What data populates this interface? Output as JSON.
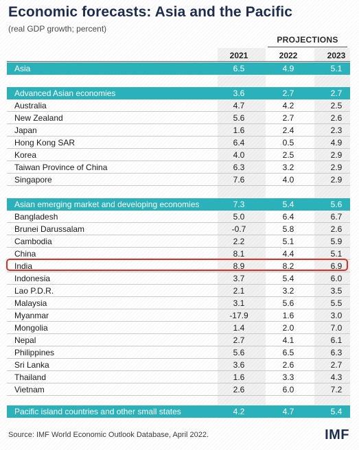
{
  "title": "Economic forecasts: Asia and the Pacific",
  "subtitle": "(real GDP growth; percent)",
  "projections_label": "PROJECTIONS",
  "columns": [
    "2021",
    "2022",
    "2023"
  ],
  "groups": {
    "asia": {
      "name": "Asia",
      "values": [
        "6.5",
        "4.9",
        "5.1"
      ]
    },
    "advanced": {
      "name": "Advanced Asian economies",
      "values": [
        "3.6",
        "2.7",
        "2.7"
      ]
    },
    "emerging": {
      "name": "Asian emerging market and developing economies",
      "values": [
        "7.3",
        "5.4",
        "5.6"
      ]
    },
    "pacific": {
      "name": "Pacific island countries and other small states",
      "values": [
        "4.2",
        "4.7",
        "5.4"
      ]
    }
  },
  "advanced_rows": [
    {
      "name": "Australia",
      "values": [
        "4.7",
        "4.2",
        "2.5"
      ]
    },
    {
      "name": "New Zealand",
      "values": [
        "5.6",
        "2.7",
        "2.6"
      ]
    },
    {
      "name": "Japan",
      "values": [
        "1.6",
        "2.4",
        "2.3"
      ]
    },
    {
      "name": "Hong Kong SAR",
      "values": [
        "6.4",
        "0.5",
        "4.9"
      ]
    },
    {
      "name": "Korea",
      "values": [
        "4.0",
        "2.5",
        "2.9"
      ]
    },
    {
      "name": "Taiwan Province of China",
      "values": [
        "6.3",
        "3.2",
        "2.9"
      ]
    },
    {
      "name": "Singapore",
      "values": [
        "7.6",
        "4.0",
        "2.9"
      ]
    }
  ],
  "emerging_rows": [
    {
      "name": "Bangladesh",
      "values": [
        "5.0",
        "6.4",
        "6.7"
      ]
    },
    {
      "name": "Brunei Darussalam",
      "values": [
        "-0.7",
        "5.8",
        "2.6"
      ]
    },
    {
      "name": "Cambodia",
      "values": [
        "2.2",
        "5.1",
        "5.9"
      ]
    },
    {
      "name": "China",
      "values": [
        "8.1",
        "4.4",
        "5.1"
      ]
    },
    {
      "name": "India",
      "values": [
        "8.9",
        "8.2",
        "6.9"
      ],
      "highlighted": true
    },
    {
      "name": "Indonesia",
      "values": [
        "3.7",
        "5.4",
        "6.0"
      ]
    },
    {
      "name": "Lao P.D.R.",
      "values": [
        "2.1",
        "3.2",
        "3.5"
      ]
    },
    {
      "name": "Malaysia",
      "values": [
        "3.1",
        "5.6",
        "5.5"
      ]
    },
    {
      "name": "Myanmar",
      "values": [
        "-17.9",
        "1.6",
        "3.0"
      ]
    },
    {
      "name": "Mongolia",
      "values": [
        "1.4",
        "2.0",
        "7.0"
      ]
    },
    {
      "name": "Nepal",
      "values": [
        "2.7",
        "4.1",
        "6.1"
      ]
    },
    {
      "name": "Philippines",
      "values": [
        "5.6",
        "6.5",
        "6.3"
      ]
    },
    {
      "name": "Sri Lanka",
      "values": [
        "3.6",
        "2.6",
        "2.7"
      ]
    },
    {
      "name": "Thailand",
      "values": [
        "1.6",
        "3.3",
        "4.3"
      ]
    },
    {
      "name": "Vietnam",
      "values": [
        "2.6",
        "6.0",
        "7.2"
      ]
    }
  ],
  "source": "Source: IMF World Economic Outlook Database, April 2022.",
  "logo": "IMF",
  "colors": {
    "band": "#2ab1b9",
    "title": "#1d2d52",
    "highlight": "#e32c1c"
  }
}
